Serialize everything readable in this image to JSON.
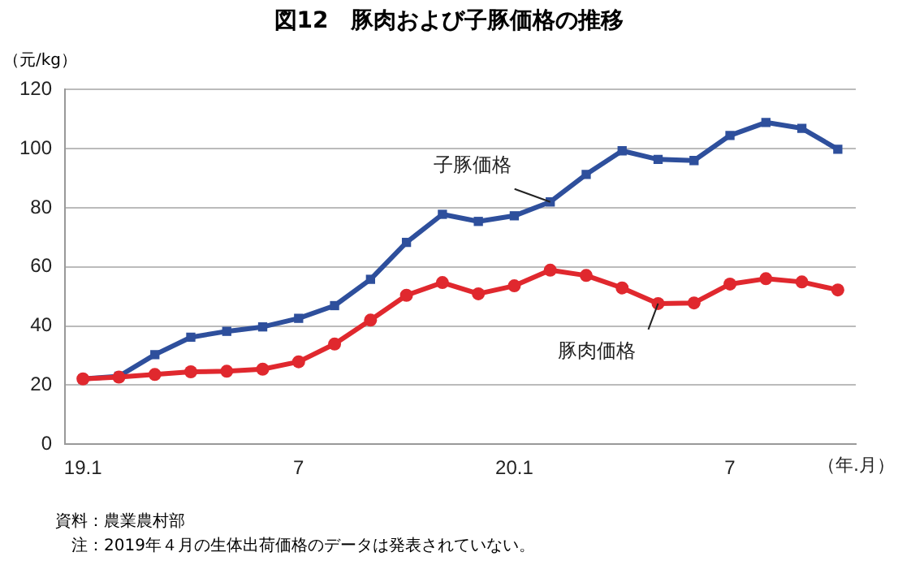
{
  "chart_data": {
    "type": "line",
    "title": "図12　豚肉および子豚価格の推移",
    "ylabel": "（元/kg）",
    "xlabel": "（年.月）",
    "categories": [
      "19.1",
      null,
      null,
      null,
      null,
      null,
      "7",
      null,
      null,
      null,
      null,
      null,
      "20.1",
      null,
      null,
      null,
      null,
      null,
      "7",
      null,
      null,
      null
    ],
    "series": [
      {
        "name": "子豚価格",
        "color": "#2e4f9c",
        "marker": "square",
        "values": [
          22.1,
          23,
          30.3,
          36.2,
          38.2,
          39.7,
          42.6,
          46.9,
          55.8,
          68.3,
          77.8,
          75.4,
          77.3,
          82,
          91.3,
          99.3,
          96.4,
          96,
          104.5,
          108.9,
          106.9,
          99.8
        ]
      },
      {
        "name": "豚肉価格",
        "color": "#e0282e",
        "marker": "circle",
        "values": [
          22.1,
          22.7,
          23.6,
          24.5,
          24.7,
          25.4,
          27.9,
          33.9,
          42,
          50.4,
          54.7,
          50.9,
          53.6,
          58.9,
          57.1,
          52.9,
          47.6,
          47.8,
          54.2,
          56,
          54.9,
          52.2
        ]
      }
    ],
    "ylim": [
      0,
      120
    ],
    "yticks": [
      0,
      20,
      40,
      60,
      80,
      100,
      120
    ],
    "grid": "y",
    "legend": false,
    "line_style": "solid",
    "annotations": [
      "資料：農業農村部",
      "注：2019年４月の生体出荷価格のデータは発表されていない。"
    ]
  }
}
